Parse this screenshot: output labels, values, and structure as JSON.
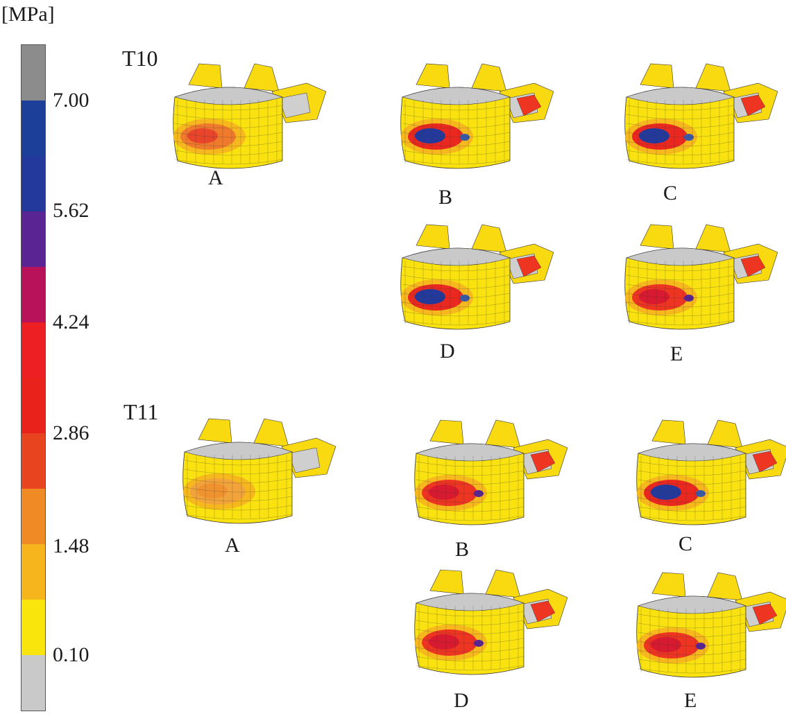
{
  "unit_label": "[MPa]",
  "colorbar": {
    "ticks": [
      "7.00",
      "5.62",
      "4.24",
      "2.86",
      "1.48",
      "0.10"
    ],
    "bands": [
      "#8c8c8c",
      "#1c3f9a",
      "#233a9c",
      "#5a2493",
      "#b8125a",
      "#ee1f22",
      "#e9231c",
      "#e84420",
      "#f08a24",
      "#f6b51d",
      "#f9e50b",
      "#c9c9c9"
    ]
  },
  "row_labels": [
    "T10",
    "T11"
  ],
  "panels": [
    {
      "label": "A",
      "level": "T10",
      "stress": "low"
    },
    {
      "label": "B",
      "level": "T10",
      "stress": "high"
    },
    {
      "label": "C",
      "level": "T10",
      "stress": "high"
    },
    {
      "label": "D",
      "level": "T10",
      "stress": "high"
    },
    {
      "label": "E",
      "level": "T10",
      "stress": "medium"
    },
    {
      "label": "A",
      "level": "T11",
      "stress": "lowest"
    },
    {
      "label": "B",
      "level": "T11",
      "stress": "medium"
    },
    {
      "label": "C",
      "level": "T11",
      "stress": "high"
    },
    {
      "label": "D",
      "level": "T11",
      "stress": "medium"
    },
    {
      "label": "E",
      "level": "T11",
      "stress": "medium"
    }
  ]
}
